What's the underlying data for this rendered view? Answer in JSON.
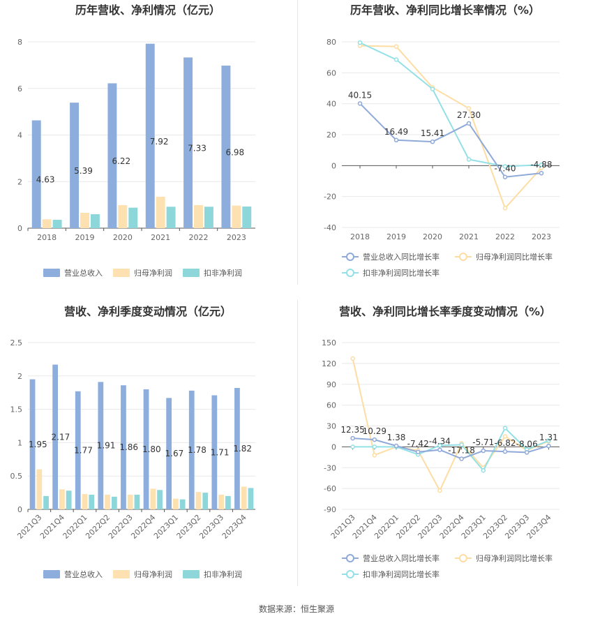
{
  "colors": {
    "revenue": "#8DAEDC",
    "net_profit": "#FDE1B0",
    "deducted_profit": "#8DD6DA",
    "revenue_line": "#8FA9D8",
    "net_profit_line": "#FDDDA4",
    "deducted_profit_line": "#93E0E6",
    "grid": "#e8e8e8",
    "axis": "#555555",
    "tick_text": "#666666",
    "title_text": "#333333"
  },
  "footer": {
    "source": "数据来源：恒生聚源"
  },
  "chart_data": [
    {
      "id": "annual-amounts",
      "type": "bar",
      "title": "历年营收、净利情况（亿元）",
      "categories": [
        "2018",
        "2019",
        "2020",
        "2021",
        "2022",
        "2023"
      ],
      "ylim": [
        0,
        8
      ],
      "yticks": [
        "0",
        "2",
        "4",
        "6",
        "8"
      ],
      "ytick_values": [
        0,
        2,
        4,
        6,
        8
      ],
      "series": [
        {
          "name": "营业总收入",
          "color_key": "revenue",
          "values": [
            4.63,
            5.39,
            6.22,
            7.92,
            7.33,
            6.98
          ],
          "labels": [
            "4.63",
            "5.39",
            "6.22",
            "7.92",
            "7.33",
            "6.98"
          ]
        },
        {
          "name": "归母净利润",
          "color_key": "net_profit",
          "values": [
            0.38,
            0.66,
            0.99,
            1.35,
            0.99,
            0.97
          ]
        },
        {
          "name": "扣非净利润",
          "color_key": "deducted_profit",
          "values": [
            0.36,
            0.6,
            0.88,
            0.92,
            0.92,
            0.93
          ]
        }
      ],
      "legend": [
        "营业总收入",
        "归母净利润",
        "扣非净利润"
      ],
      "legend_position": "bottom"
    },
    {
      "id": "annual-growth",
      "type": "line",
      "title": "历年营收、净利同比增长率情况（%）",
      "categories": [
        "2018",
        "2019",
        "2020",
        "2021",
        "2022",
        "2023"
      ],
      "ylim": [
        -40,
        80
      ],
      "yticks": [
        "-40",
        "-20",
        "0",
        "20",
        "40",
        "60",
        "80"
      ],
      "ytick_values": [
        -40,
        -20,
        0,
        20,
        40,
        60,
        80
      ],
      "series": [
        {
          "name": "营业总收入同比增长率",
          "color_key": "revenue_line",
          "values": [
            40.15,
            16.49,
            15.41,
            27.3,
            -7.4,
            -4.88
          ],
          "labels": [
            "40.15",
            "16.49",
            "15.41",
            "27.30",
            "-7.40",
            "-4.88"
          ]
        },
        {
          "name": "归母净利润同比增长率",
          "color_key": "net_profit_line",
          "values": [
            77.5,
            77.0,
            50.5,
            37.0,
            -27.5,
            -1.5
          ]
        },
        {
          "name": "扣非净利润同比增长率",
          "color_key": "deducted_profit_line",
          "values": [
            79.5,
            68.5,
            49.5,
            4.0,
            -0.5,
            0.5
          ]
        }
      ],
      "legend": [
        "营业总收入同比增长率",
        "归母净利润同比增长率",
        "扣非净利润同比增长率"
      ],
      "legend_position": "bottom"
    },
    {
      "id": "quarterly-amounts",
      "type": "bar",
      "title": "营收、净利季度变动情况（亿元）",
      "categories": [
        "2021Q3",
        "2021Q4",
        "2022Q1",
        "2022Q2",
        "2022Q3",
        "2022Q4",
        "2023Q1",
        "2023Q2",
        "2023Q3",
        "2023Q4"
      ],
      "ylim": [
        0,
        2.5
      ],
      "yticks": [
        "0",
        "0.5",
        "1",
        "1.5",
        "2",
        "2.5"
      ],
      "ytick_values": [
        0,
        0.5,
        1,
        1.5,
        2,
        2.5
      ],
      "series": [
        {
          "name": "营业总收入",
          "color_key": "revenue",
          "values": [
            1.95,
            2.17,
            1.77,
            1.91,
            1.86,
            1.8,
            1.67,
            1.78,
            1.71,
            1.82
          ],
          "labels": [
            "1.95",
            "2.17",
            "1.77",
            "1.91",
            "1.86",
            "1.80",
            "1.67",
            "1.78",
            "1.71",
            "1.82"
          ]
        },
        {
          "name": "归母净利润",
          "color_key": "net_profit",
          "values": [
            0.6,
            0.3,
            0.23,
            0.22,
            0.22,
            0.31,
            0.16,
            0.26,
            0.22,
            0.34
          ]
        },
        {
          "name": "扣非净利润",
          "color_key": "deducted_profit",
          "values": [
            0.2,
            0.28,
            0.22,
            0.19,
            0.22,
            0.29,
            0.15,
            0.25,
            0.2,
            0.32
          ]
        }
      ],
      "legend": [
        "营业总收入",
        "归母净利润",
        "扣非净利润"
      ],
      "legend_position": "bottom"
    },
    {
      "id": "quarterly-growth",
      "type": "line",
      "title": "营收、净利同比增长率季度变动情况（%）",
      "categories": [
        "2021Q3",
        "2021Q4",
        "2022Q1",
        "2022Q2",
        "2022Q3",
        "2022Q4",
        "2023Q1",
        "2023Q2",
        "2023Q3",
        "2023Q4"
      ],
      "ylim": [
        -90,
        150
      ],
      "yticks": [
        "-90",
        "-60",
        "-30",
        "0",
        "30",
        "60",
        "90",
        "120",
        "150"
      ],
      "ytick_values": [
        -90,
        -60,
        -30,
        0,
        30,
        60,
        90,
        120,
        150
      ],
      "series": [
        {
          "name": "营业总收入同比增长率",
          "color_key": "revenue_line",
          "values": [
            12.35,
            10.29,
            1.38,
            -7.42,
            -4.34,
            -17.18,
            -5.71,
            -6.82,
            -8.06,
            1.31
          ],
          "labels": [
            "12.35",
            "10.29",
            "1.38",
            "-7.42",
            "-4.34",
            "-17.18",
            "-5.71",
            "-6.82",
            "-8.06",
            "1.31"
          ]
        },
        {
          "name": "归母净利润同比增长率",
          "color_key": "net_profit_line",
          "values": [
            127,
            -12,
            0,
            -5,
            -63,
            5,
            -30,
            15,
            -5,
            8
          ]
        },
        {
          "name": "扣非净利润同比增长率",
          "color_key": "deducted_profit_line",
          "values": [
            0,
            0,
            0,
            -11,
            2,
            3,
            -34,
            27,
            -4,
            9
          ]
        }
      ],
      "legend": [
        "营业总收入同比增长率",
        "归母净利润同比增长率",
        "扣非净利润同比增长率"
      ],
      "legend_position": "bottom"
    }
  ]
}
